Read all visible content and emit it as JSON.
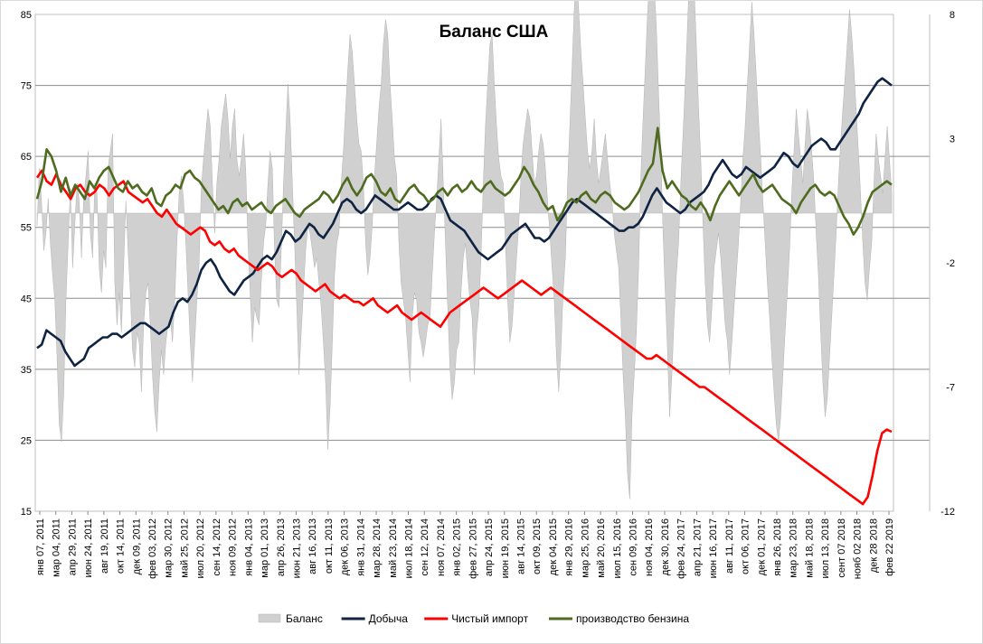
{
  "chart_data": {
    "type": "line",
    "title": "Баланс США",
    "left_axis": {
      "min": 15,
      "max": 85,
      "ticks": [
        15,
        25,
        35,
        45,
        55,
        65,
        75,
        85
      ],
      "gridlines": [
        25,
        35,
        45,
        55,
        65,
        75
      ]
    },
    "right_axis": {
      "min": -12,
      "max": 8,
      "ticks": [
        -12,
        -7,
        -2,
        3,
        8
      ]
    },
    "x_ticks": [
      "янв 07, 2011",
      "мар 04, 2011",
      "апр 29, 2011",
      "июн 24, 2011",
      "авг 19, 2011",
      "окт 14, 2011",
      "дек 09, 2011",
      "фев 03, 2012",
      "мар 30, 2012",
      "май 25, 2012",
      "июл 20, 2012",
      "сен 14, 2012",
      "ноя 09, 2012",
      "янв 04, 2013",
      "мар 01, 2013",
      "апр 26, 2013",
      "июн 21, 2013",
      "авг 16, 2013",
      "окт 11, 2013",
      "дек 06, 2013",
      "янв 31, 2014",
      "мар 28, 2014",
      "май 23, 2014",
      "июл 18, 2014",
      "сен 12, 2014",
      "ноя 07, 2014",
      "янв 02, 2015",
      "фев 27, 2015",
      "апр 24, 2015",
      "июн 19, 2015",
      "авг 14, 2015",
      "окт 09, 2015",
      "дек 04, 2015",
      "янв 29, 2016",
      "мар 25, 2016",
      "май 20, 2016",
      "июл 15, 2016",
      "сен 09, 2016",
      "ноя 04, 2016",
      "дек 30, 2016",
      "фев 24, 2017",
      "апр 21, 2017",
      "июн 16, 2017",
      "авг 11, 2017",
      "окт 06, 2017",
      "дек 01, 2017",
      "янв 26, 2018",
      "мар 23, 2018",
      "май 18, 2018",
      "июл 13, 2018",
      "сент 07 2018",
      "нояб 02 2018",
      "дек 28 2018",
      "фев 22 2019"
    ],
    "legend_position": "bottom",
    "series": [
      {
        "name": "Баланс",
        "kind": "area",
        "axis": "right",
        "color": "#d0d0d0",
        "values": [
          -0.5,
          1.8,
          0.5,
          -1.5,
          -0.8,
          0.6,
          -1.2,
          -2.5,
          -3.5,
          -5.8,
          -8.5,
          -9.2,
          -7.2,
          -3.5,
          -1.2,
          1.0,
          -2.2,
          -0.5,
          1.2,
          0.5,
          -1.8,
          0.6,
          1.5,
          2.5,
          -0.8,
          -1.8,
          1.2,
          0.8,
          -2.2,
          -3.2,
          -1.5,
          -2.2,
          1.8,
          2.5,
          3.2,
          -2.8,
          -4.5,
          -3.2,
          -4.8,
          -2.2,
          0.5,
          -1.5,
          -3.2,
          -5.5,
          -6.2,
          -4.8,
          -5.2,
          -7.2,
          -4.5,
          -3.2,
          -2.8,
          -4.5,
          -6.5,
          -8.0,
          -8.8,
          -6.8,
          -5.5,
          -6.5,
          -5.2,
          -4.5,
          -4.2,
          -5.2,
          -3.5,
          -1.2,
          0.8,
          1.5,
          0.5,
          -1.2,
          -3.2,
          -5.2,
          -6.8,
          -5.2,
          -3.5,
          -2.0,
          1.0,
          2.2,
          3.2,
          4.2,
          3.5,
          1.2,
          -0.8,
          1.2,
          2.2,
          3.5,
          4.2,
          4.8,
          3.8,
          2.2,
          3.5,
          4.2,
          2.2,
          1.5,
          2.2,
          3.2,
          1.8,
          -1.2,
          -3.2,
          -5.2,
          -3.8,
          -4.2,
          -4.5,
          -2.8,
          -1.2,
          -0.5,
          1.2,
          2.5,
          1.8,
          -1.5,
          -3.5,
          -3.8,
          -1.5,
          1.2,
          3.2,
          5.2,
          3.8,
          1.2,
          -1.2,
          -3.8,
          -6.5,
          -4.8,
          -3.2,
          -1.5,
          -0.5,
          -0.8,
          -1.5,
          -2.2,
          -1.8,
          -2.8,
          -3.8,
          -5.2,
          -6.8,
          -9.5,
          -7.8,
          -5.2,
          -2.5,
          -1.2,
          -0.8,
          1.2,
          2.5,
          4.2,
          5.8,
          7.2,
          6.5,
          5.2,
          3.8,
          2.8,
          2.5,
          1.2,
          -1.2,
          -2.5,
          -1.8,
          -0.5,
          1.5,
          2.8,
          4.2,
          5.2,
          6.8,
          7.8,
          7.2,
          5.2,
          3.8,
          2.2,
          1.5,
          -1.2,
          -2.8,
          -3.5,
          -4.2,
          -5.5,
          -6.8,
          -4.2,
          -3.2,
          -3.5,
          -4.8,
          -5.2,
          -5.8,
          -5.2,
          -4.5,
          -4.2,
          -2.5,
          -0.8,
          0.5,
          2.2,
          3.8,
          1.2,
          -1.2,
          -3.8,
          -6.2,
          -7.5,
          -6.8,
          -5.5,
          -5.2,
          -3.2,
          -1.8,
          -1.2,
          -2.5,
          -3.5,
          -4.2,
          -6.5,
          -4.8,
          -3.8,
          -1.8,
          1.2,
          3.5,
          5.2,
          6.8,
          7.2,
          5.2,
          3.5,
          2.2,
          1.5,
          1.2,
          -1.2,
          -3.5,
          -5.2,
          -4.5,
          -3.2,
          -1.8,
          -0.5,
          1.5,
          2.8,
          3.5,
          4.2,
          3.8,
          2.5,
          1.2,
          1.5,
          2.5,
          3.2,
          2.8,
          1.8,
          0.5,
          -0.8,
          -2.2,
          -3.5,
          -5.8,
          -7.2,
          -5.5,
          -3.2,
          -1.8,
          1.2,
          3.5,
          5.8,
          8.2,
          9.8,
          8.2,
          6.5,
          5.2,
          3.8,
          2.5,
          1.8,
          2.5,
          3.8,
          2.2,
          1.2,
          1.8,
          2.5,
          3.2,
          2.2,
          1.2,
          0.5,
          -0.8,
          -1.5,
          -2.2,
          -4.2,
          -6.5,
          -8.2,
          -10.5,
          -11.5,
          -8.2,
          -6.5,
          -4.8,
          -2.2,
          1.5,
          3.8,
          5.8,
          8.0,
          9.5,
          11.2,
          9.2,
          7.5,
          4.8,
          2.5,
          -0.8,
          -3.2,
          -5.5,
          -8.2,
          -6.5,
          -4.2,
          -2.5,
          -1.2,
          1.2,
          3.2,
          5.2,
          7.5,
          9.8,
          11.8,
          9.2,
          6.8,
          4.2,
          2.2,
          -0.5,
          -2.8,
          -4.5,
          -5.2,
          -3.8,
          -2.2,
          -1.5,
          -0.8,
          -1.8,
          -3.2,
          -4.5,
          -5.2,
          -6.5,
          -5.2,
          -3.8,
          -2.5,
          -1.2,
          0.5,
          2.2,
          3.5,
          5.2,
          6.8,
          8.5,
          7.2,
          5.5,
          3.8,
          2.2,
          0.5,
          -1.2,
          -2.8,
          -4.2,
          -5.8,
          -7.2,
          -8.5,
          -9.2,
          -8.2,
          -6.5,
          -4.8,
          -3.2,
          -1.5,
          0.8,
          2.5,
          4.2,
          3.2,
          2.2,
          1.2,
          2.8,
          4.2,
          3.5,
          2.5,
          1.2,
          -0.8,
          -2.5,
          -4.8,
          -6.8,
          -8.2,
          -7.5,
          -5.8,
          -4.2,
          -2.5,
          -0.8,
          1.2,
          2.8,
          4.2,
          5.5,
          6.8,
          8.2,
          7.2,
          5.8,
          4.2,
          2.5,
          0.8,
          -1.2,
          -2.8,
          -3.5,
          -2.2,
          -1.2,
          1.2,
          3.2,
          2.2,
          1.5,
          0.8,
          2.2,
          3.5,
          2.2,
          0.8
        ]
      },
      {
        "name": "Добыча",
        "kind": "line",
        "axis": "left",
        "color": "#0f2342",
        "values": [
          38.0,
          38.5,
          40.5,
          40.0,
          39.5,
          39.0,
          37.5,
          36.5,
          35.5,
          36.0,
          36.5,
          38.0,
          38.5,
          39.0,
          39.5,
          39.5,
          40.0,
          40.0,
          39.5,
          40.0,
          40.5,
          41.0,
          41.5,
          41.5,
          41.0,
          40.5,
          40.0,
          40.5,
          41.0,
          43.0,
          44.5,
          45.0,
          44.5,
          45.5,
          47.0,
          49.0,
          50.0,
          50.5,
          49.5,
          48.0,
          47.0,
          46.0,
          45.5,
          46.5,
          47.5,
          48.0,
          48.5,
          49.5,
          50.5,
          51.0,
          50.5,
          51.5,
          53.0,
          54.5,
          54.0,
          53.0,
          53.5,
          54.5,
          55.5,
          55.0,
          54.0,
          53.5,
          54.5,
          55.5,
          57.0,
          58.5,
          59.0,
          58.5,
          57.5,
          57.0,
          57.5,
          58.5,
          59.5,
          59.0,
          58.5,
          58.0,
          57.5,
          57.5,
          58.0,
          58.5,
          58.0,
          57.5,
          57.5,
          58.0,
          59.0,
          59.5,
          59.0,
          57.5,
          56.0,
          55.5,
          55.0,
          54.5,
          53.5,
          52.5,
          51.5,
          51.0,
          50.5,
          51.0,
          51.5,
          52.0,
          53.0,
          54.0,
          54.5,
          55.0,
          55.5,
          54.5,
          53.5,
          53.5,
          53.0,
          53.5,
          54.5,
          55.5,
          56.5,
          57.5,
          58.5,
          59.0,
          58.5,
          58.0,
          57.5,
          57.0,
          56.5,
          56.0,
          55.5,
          55.0,
          54.5,
          54.5,
          55.0,
          55.0,
          55.5,
          56.5,
          58.0,
          59.5,
          60.5,
          59.5,
          58.5,
          58.0,
          57.5,
          57.0,
          57.5,
          58.5,
          59.0,
          59.5,
          60.0,
          61.0,
          62.5,
          63.5,
          64.5,
          63.5,
          62.5,
          62.0,
          62.5,
          63.5,
          63.0,
          62.5,
          62.0,
          62.5,
          63.0,
          63.5,
          64.5,
          65.5,
          65.0,
          64.0,
          63.5,
          64.5,
          65.5,
          66.5,
          67.0,
          67.5,
          67.0,
          66.0,
          66.0,
          67.0,
          68.0,
          69.0,
          70.0,
          71.0,
          72.5,
          73.5,
          74.5,
          75.5,
          76.0,
          75.5,
          75.0
        ]
      },
      {
        "name": "Чистый импорт",
        "kind": "line",
        "axis": "left",
        "color": "#ff0000",
        "values": [
          62.0,
          63.0,
          61.5,
          61.0,
          62.5,
          61.0,
          60.0,
          59.0,
          60.5,
          61.0,
          60.0,
          59.5,
          60.0,
          61.0,
          60.5,
          59.5,
          60.5,
          61.0,
          61.5,
          60.0,
          59.5,
          59.0,
          58.5,
          59.0,
          58.0,
          57.0,
          56.5,
          57.5,
          56.5,
          55.5,
          55.0,
          54.5,
          54.0,
          54.5,
          55.0,
          54.5,
          53.0,
          52.5,
          53.0,
          52.0,
          51.5,
          52.0,
          51.0,
          50.5,
          50.0,
          49.5,
          49.0,
          49.5,
          50.0,
          49.5,
          48.5,
          48.0,
          48.5,
          49.0,
          48.5,
          47.5,
          47.0,
          46.5,
          46.0,
          46.5,
          47.0,
          46.0,
          45.5,
          45.0,
          45.5,
          45.0,
          44.5,
          44.5,
          44.0,
          44.5,
          45.0,
          44.0,
          43.5,
          43.0,
          43.5,
          44.0,
          43.0,
          42.5,
          42.0,
          42.5,
          43.0,
          42.5,
          42.0,
          41.5,
          41.0,
          42.0,
          43.0,
          43.5,
          44.0,
          44.5,
          45.0,
          45.5,
          46.0,
          46.5,
          46.0,
          45.5,
          45.0,
          45.5,
          46.0,
          46.5,
          47.0,
          47.5,
          47.0,
          46.5,
          46.0,
          45.5,
          46.0,
          46.5,
          46.0,
          45.5,
          45.0,
          44.5,
          44.0,
          43.5,
          43.0,
          42.5,
          42.0,
          41.5,
          41.0,
          40.5,
          40.0,
          39.5,
          39.0,
          38.5,
          38.0,
          37.5,
          37.0,
          36.5,
          36.5,
          37.0,
          36.5,
          36.0,
          35.5,
          35.0,
          34.5,
          34.0,
          33.5,
          33.0,
          32.5,
          32.5,
          32.0,
          31.5,
          31.0,
          30.5,
          30.0,
          29.5,
          29.0,
          28.5,
          28.0,
          27.5,
          27.0,
          26.5,
          26.0,
          25.5,
          25.0,
          24.5,
          24.0,
          23.5,
          23.0,
          22.5,
          22.0,
          21.5,
          21.0,
          20.5,
          20.0,
          19.5,
          19.0,
          18.5,
          18.0,
          17.5,
          17.0,
          16.5,
          16.0,
          17.0,
          20.0,
          23.5,
          26.0,
          26.5,
          26.2
        ]
      },
      {
        "name": "производство бензина",
        "kind": "line",
        "axis": "left",
        "color": "#4e6b1f",
        "values": [
          59.0,
          61.5,
          66.0,
          65.0,
          63.0,
          60.0,
          62.0,
          59.5,
          61.0,
          60.0,
          59.0,
          61.5,
          60.5,
          62.0,
          63.0,
          63.5,
          62.0,
          60.5,
          60.0,
          61.5,
          60.5,
          61.0,
          60.0,
          59.5,
          60.5,
          58.5,
          58.0,
          59.5,
          60.0,
          61.0,
          60.5,
          62.5,
          63.0,
          62.0,
          61.5,
          60.5,
          59.5,
          58.5,
          57.5,
          58.0,
          57.0,
          58.5,
          59.0,
          58.0,
          58.5,
          57.5,
          58.0,
          58.5,
          57.5,
          57.0,
          58.0,
          58.5,
          59.0,
          58.0,
          57.0,
          56.5,
          57.5,
          58.0,
          58.5,
          59.0,
          60.0,
          59.5,
          58.5,
          59.5,
          61.0,
          62.0,
          60.5,
          59.5,
          60.5,
          62.0,
          62.5,
          61.5,
          60.0,
          59.5,
          60.5,
          59.0,
          58.5,
          59.5,
          60.5,
          61.0,
          60.0,
          59.5,
          58.5,
          59.0,
          60.0,
          60.5,
          59.5,
          60.5,
          61.0,
          60.0,
          60.5,
          61.5,
          60.5,
          60.0,
          61.0,
          61.5,
          60.5,
          60.0,
          59.5,
          60.0,
          61.0,
          62.0,
          63.5,
          62.5,
          61.0,
          60.0,
          58.5,
          57.5,
          58.0,
          56.0,
          57.0,
          58.5,
          59.0,
          58.5,
          59.5,
          60.0,
          59.0,
          58.5,
          59.5,
          60.0,
          59.5,
          58.5,
          58.0,
          57.5,
          58.0,
          59.0,
          60.0,
          61.5,
          63.0,
          64.0,
          69.0,
          63.0,
          60.5,
          61.5,
          60.5,
          59.5,
          59.0,
          58.0,
          57.5,
          58.5,
          57.5,
          56.0,
          58.0,
          59.5,
          60.5,
          61.5,
          60.5,
          59.5,
          60.5,
          61.5,
          62.5,
          61.0,
          60.0,
          60.5,
          61.0,
          60.0,
          59.0,
          58.5,
          58.0,
          57.0,
          58.5,
          59.5,
          60.5,
          61.0,
          60.0,
          59.5,
          60.0,
          59.5,
          58.0,
          56.5,
          55.5,
          54.0,
          55.0,
          56.5,
          58.5,
          60.0,
          60.5,
          61.0,
          61.5,
          61.0
        ]
      }
    ]
  }
}
